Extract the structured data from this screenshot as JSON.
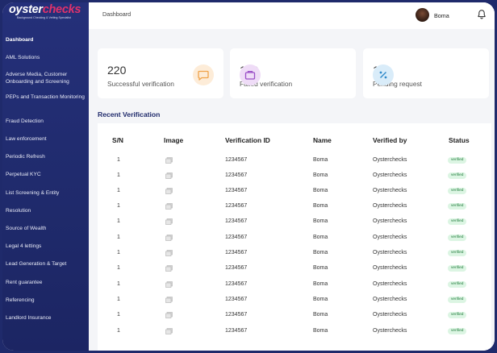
{
  "brand": {
    "logo_white": "oyster",
    "logo_red": "checks",
    "tagline": "Background Checking & Vetting Specialist"
  },
  "sidebar": {
    "items": [
      {
        "label": "Dashboard",
        "active": true
      },
      {
        "label": "AML Solutions"
      },
      {
        "label": "Adverse Media, Customer Onboarding and Screening"
      },
      {
        "label": "PEPs and Transaction Monitoring"
      },
      {
        "label": "Fraud Detection"
      },
      {
        "label": "Law enforcement"
      },
      {
        "label": "Periodic Refresh"
      },
      {
        "label": "Perpetual KYC"
      },
      {
        "label": "List Screening & Entity"
      },
      {
        "label": "Resolution"
      },
      {
        "label": "Source of Wealth"
      },
      {
        "label": "Legal 4 lettings"
      },
      {
        "label": "Lead Generation & Target"
      },
      {
        "label": "Rent guarantee"
      },
      {
        "label": "Referencing"
      },
      {
        "label": "Landlord Insurance"
      }
    ]
  },
  "header": {
    "breadcrumb": "Dashboard",
    "user_name": "Boma",
    "bell_icon": "bell-icon"
  },
  "stats": [
    {
      "value": "220",
      "label": "Successful verification",
      "icon": "chat-icon",
      "icon_color": "#f0a34a",
      "icon_bg": "#fdecd8"
    },
    {
      "value": "160",
      "label": "Failed verification",
      "icon": "briefcase-icon",
      "icon_color": "#9b4fc7",
      "icon_bg": "#efdcf7"
    },
    {
      "value": "10",
      "label": "Pending request",
      "icon": "percent-icon",
      "icon_color": "#2f89c9",
      "icon_bg": "#d9ecf9"
    }
  ],
  "table": {
    "title": "Recent Verification",
    "columns": [
      "S/N",
      "Image",
      "Verification ID",
      "Name",
      "Verified by",
      "Status"
    ],
    "rows": [
      {
        "sn": "1",
        "id": "1234567",
        "name": "Boma",
        "by": "Oysterchecks",
        "status": "verified"
      },
      {
        "sn": "1",
        "id": "1234567",
        "name": "Boma",
        "by": "Oysterchecks",
        "status": "verified"
      },
      {
        "sn": "1",
        "id": "1234567",
        "name": "Boma",
        "by": "Oysterchecks",
        "status": "verified"
      },
      {
        "sn": "1",
        "id": "1234567",
        "name": "Boma",
        "by": "Oysterchecks",
        "status": "verified"
      },
      {
        "sn": "1",
        "id": "1234567",
        "name": "Boma",
        "by": "Oysterchecks",
        "status": "verified"
      },
      {
        "sn": "1",
        "id": "1234567",
        "name": "Boma",
        "by": "Oysterchecks",
        "status": "verified"
      },
      {
        "sn": "1",
        "id": "1234567",
        "name": "Boma",
        "by": "Oysterchecks",
        "status": "verified"
      },
      {
        "sn": "1",
        "id": "1234567",
        "name": "Boma",
        "by": "Oysterchecks",
        "status": "verified"
      },
      {
        "sn": "1",
        "id": "1234567",
        "name": "Boma",
        "by": "Oysterchecks",
        "status": "verified"
      },
      {
        "sn": "1",
        "id": "1234567",
        "name": "Boma",
        "by": "Oysterchecks",
        "status": "verified"
      },
      {
        "sn": "1",
        "id": "1234567",
        "name": "Boma",
        "by": "Oysterchecks",
        "status": "verified"
      },
      {
        "sn": "1",
        "id": "1234567",
        "name": "Boma",
        "by": "Oysterchecks",
        "status": "verified"
      }
    ]
  },
  "colors": {
    "sidebar": "#1f2a6b",
    "accent_red": "#e0326b",
    "title_blue": "#1f2a6b",
    "badge_bg": "#dcf5e3",
    "badge_text": "#1f7a3a"
  }
}
